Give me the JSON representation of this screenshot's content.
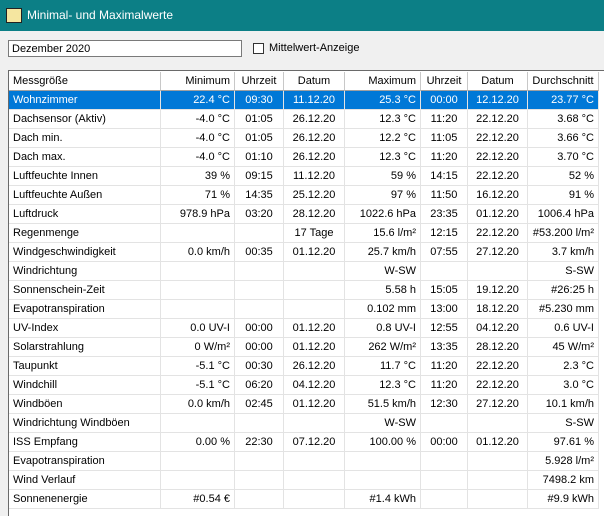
{
  "window": {
    "title": "Minimal- und Maximalwerte"
  },
  "period": "Dezember 2020",
  "checkbox": {
    "label": "Mittelwert-Anzeige",
    "checked": false
  },
  "table": {
    "selected_row": 0,
    "columns": [
      "Messgröße",
      "Minimum",
      "Uhrzeit",
      "Datum",
      "Maximum",
      "Uhrzeit",
      "Datum",
      "Durchschnitt"
    ],
    "rows": [
      [
        "Wohnzimmer",
        "22.4 °C",
        "09:30",
        "11.12.20",
        "25.3 °C",
        "00:00",
        "12.12.20",
        "23.77 °C"
      ],
      [
        "Dachsensor (Aktiv)",
        "-4.0 °C",
        "01:05",
        "26.12.20",
        "12.3 °C",
        "11:20",
        "22.12.20",
        "3.68 °C"
      ],
      [
        "Dach min.",
        "-4.0 °C",
        "01:05",
        "26.12.20",
        "12.2 °C",
        "11:05",
        "22.12.20",
        "3.66 °C"
      ],
      [
        "Dach max.",
        "-4.0 °C",
        "01:10",
        "26.12.20",
        "12.3 °C",
        "11:20",
        "22.12.20",
        "3.70 °C"
      ],
      [
        "Luftfeuchte Innen",
        "39 %",
        "09:15",
        "11.12.20",
        "59 %",
        "14:15",
        "22.12.20",
        "52 %"
      ],
      [
        "Luftfeuchte Außen",
        "71 %",
        "14:35",
        "25.12.20",
        "97 %",
        "11:50",
        "16.12.20",
        "91 %"
      ],
      [
        "Luftdruck",
        "978.9 hPa",
        "03:20",
        "28.12.20",
        "1022.6 hPa",
        "23:35",
        "01.12.20",
        "1006.4 hPa"
      ],
      [
        "Regenmenge",
        null,
        null,
        "17 Tage",
        "15.6 l/m²",
        "12:15",
        "22.12.20",
        "#53.200 l/m²"
      ],
      [
        "Windgeschwindigkeit",
        "0.0 km/h",
        "00:35",
        "01.12.20",
        "25.7 km/h",
        "07:55",
        "27.12.20",
        "3.7 km/h"
      ],
      [
        "Windrichtung",
        null,
        null,
        null,
        "W-SW",
        null,
        null,
        "S-SW"
      ],
      [
        "Sonnenschein-Zeit",
        null,
        null,
        null,
        "5.58 h",
        "15:05",
        "19.12.20",
        "#26:25 h"
      ],
      [
        "Evapotranspiration",
        null,
        null,
        null,
        "0.102 mm",
        "13:00",
        "18.12.20",
        "#5.230 mm"
      ],
      [
        "UV-Index",
        "0.0 UV-I",
        "00:00",
        "01.12.20",
        "0.8 UV-I",
        "12:55",
        "04.12.20",
        "0.6 UV-I"
      ],
      [
        "Solarstrahlung",
        "0 W/m²",
        "00:00",
        "01.12.20",
        "262 W/m²",
        "13:35",
        "28.12.20",
        "45 W/m²"
      ],
      [
        "Taupunkt",
        "-5.1 °C",
        "00:30",
        "26.12.20",
        "11.7 °C",
        "11:20",
        "22.12.20",
        "2.3 °C"
      ],
      [
        "Windchill",
        "-5.1 °C",
        "06:20",
        "04.12.20",
        "12.3 °C",
        "11:20",
        "22.12.20",
        "3.0 °C"
      ],
      [
        "Windböen",
        "0.0 km/h",
        "02:45",
        "01.12.20",
        "51.5 km/h",
        "12:30",
        "27.12.20",
        "10.1 km/h"
      ],
      [
        "Windrichtung Windböen",
        null,
        null,
        null,
        "W-SW",
        null,
        null,
        "S-SW"
      ],
      [
        "ISS Empfang",
        "0.00 %",
        "22:30",
        "07.12.20",
        "100.00 %",
        "00:00",
        "01.12.20",
        "97.61 %"
      ],
      [
        "Evapotranspiration",
        null,
        null,
        null,
        null,
        null,
        null,
        "5.928 l/m²"
      ],
      [
        "Wind Verlauf",
        null,
        null,
        null,
        null,
        null,
        null,
        "7498.2 km"
      ],
      [
        "Sonnenenergie",
        "#0.54 €",
        null,
        null,
        "#1.4 kWh",
        null,
        null,
        "#9.9 kWh"
      ]
    ]
  }
}
